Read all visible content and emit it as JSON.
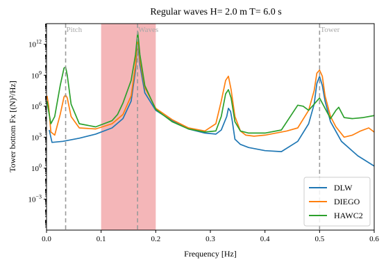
{
  "chart_data": {
    "type": "line",
    "title": "Regular waves H= 2.0 m T= 6.0 s",
    "xlabel": "Frequency [Hz]",
    "ylabel": "Tower bottom Fx [(N)²/Hz]",
    "xlim": [
      0.0,
      0.6
    ],
    "ylim_log10": [
      -6,
      14
    ],
    "yscale": "log",
    "grid": false,
    "legend_position": "lower-right",
    "x_ticks": [
      0.0,
      0.1,
      0.2,
      0.3,
      0.4,
      0.5,
      0.6
    ],
    "x_tick_labels": [
      "0.0",
      "0.1",
      "0.2",
      "0.3",
      "0.4",
      "0.5",
      "0.6"
    ],
    "y_ticks_log10": [
      -3,
      0,
      3,
      6,
      9,
      12
    ],
    "y_tick_labels": [
      "10",
      "10",
      "10",
      "10",
      "10",
      "10"
    ],
    "y_tick_exponents": [
      "−3",
      "0",
      "3",
      "6",
      "9",
      "12"
    ],
    "shaded_band": {
      "x_start": 0.1,
      "x_end": 0.2,
      "color": "#f4b6b8"
    },
    "vertical_lines": [
      {
        "x": 0.035,
        "label": "Pitch"
      },
      {
        "x": 0.1667,
        "label": "Waves"
      },
      {
        "x": 0.5,
        "label": "Tower"
      }
    ],
    "series": [
      {
        "name": "DLW",
        "color": "#1f77b4",
        "x": [
          0.005,
          0.01,
          0.03,
          0.06,
          0.09,
          0.12,
          0.14,
          0.155,
          0.163,
          0.167,
          0.171,
          0.18,
          0.2,
          0.23,
          0.26,
          0.29,
          0.31,
          0.32,
          0.33,
          0.333,
          0.337,
          0.34,
          0.345,
          0.355,
          0.37,
          0.4,
          0.43,
          0.46,
          0.48,
          0.49,
          0.495,
          0.5,
          0.505,
          0.51,
          0.52,
          0.54,
          0.57,
          0.6
        ],
        "y_log10": [
          3.7,
          2.5,
          2.6,
          2.9,
          3.3,
          3.9,
          4.8,
          6.5,
          9.5,
          12.3,
          10.0,
          7.3,
          5.6,
          4.6,
          3.8,
          3.4,
          3.3,
          3.7,
          5.0,
          5.8,
          5.5,
          4.6,
          2.8,
          2.3,
          2.0,
          1.7,
          1.6,
          2.6,
          4.3,
          6.2,
          8.2,
          8.9,
          8.0,
          6.5,
          4.5,
          2.6,
          1.2,
          0.2
        ]
      },
      {
        "name": "DIEGO",
        "color": "#ff7f0e",
        "x": [
          0.001,
          0.004,
          0.008,
          0.015,
          0.025,
          0.032,
          0.035,
          0.038,
          0.045,
          0.06,
          0.09,
          0.12,
          0.14,
          0.155,
          0.163,
          0.167,
          0.171,
          0.18,
          0.2,
          0.23,
          0.26,
          0.29,
          0.31,
          0.32,
          0.328,
          0.333,
          0.338,
          0.345,
          0.355,
          0.365,
          0.38,
          0.4,
          0.42,
          0.44,
          0.46,
          0.48,
          0.49,
          0.495,
          0.5,
          0.505,
          0.51,
          0.52,
          0.53,
          0.545,
          0.56,
          0.575,
          0.59,
          0.6
        ],
        "y_log10": [
          7.0,
          6.0,
          3.5,
          3.2,
          5.2,
          6.9,
          7.1,
          6.8,
          5.0,
          3.9,
          3.8,
          4.3,
          5.2,
          7.0,
          10.0,
          12.8,
          10.5,
          7.8,
          5.8,
          4.7,
          3.9,
          3.6,
          4.3,
          6.5,
          8.5,
          8.9,
          7.6,
          5.0,
          3.6,
          3.2,
          3.1,
          3.2,
          3.4,
          3.6,
          3.9,
          5.6,
          7.5,
          9.2,
          9.5,
          8.9,
          7.0,
          5.0,
          4.0,
          3.0,
          3.2,
          3.6,
          3.9,
          3.5
        ]
      },
      {
        "name": "HAWC2",
        "color": "#2ca02c",
        "x": [
          0.001,
          0.004,
          0.008,
          0.015,
          0.025,
          0.032,
          0.035,
          0.038,
          0.045,
          0.06,
          0.09,
          0.12,
          0.13,
          0.14,
          0.155,
          0.163,
          0.167,
          0.171,
          0.18,
          0.2,
          0.23,
          0.26,
          0.29,
          0.31,
          0.32,
          0.328,
          0.333,
          0.338,
          0.345,
          0.355,
          0.37,
          0.4,
          0.43,
          0.46,
          0.47,
          0.48,
          0.49,
          0.5,
          0.51,
          0.52,
          0.53,
          0.535,
          0.545,
          0.56,
          0.58,
          0.6
        ],
        "y_log10": [
          6.5,
          5.5,
          4.3,
          5.0,
          8.0,
          9.7,
          9.8,
          9.0,
          6.2,
          4.3,
          4.0,
          4.6,
          5.2,
          6.3,
          8.5,
          11.0,
          13.2,
          11.0,
          8.0,
          5.7,
          4.5,
          3.8,
          3.5,
          3.6,
          5.0,
          7.2,
          7.6,
          6.8,
          4.5,
          3.6,
          3.4,
          3.4,
          3.7,
          6.1,
          6.0,
          5.6,
          6.2,
          6.8,
          5.8,
          4.8,
          5.6,
          5.9,
          4.9,
          4.8,
          4.9,
          5.1
        ]
      }
    ]
  }
}
